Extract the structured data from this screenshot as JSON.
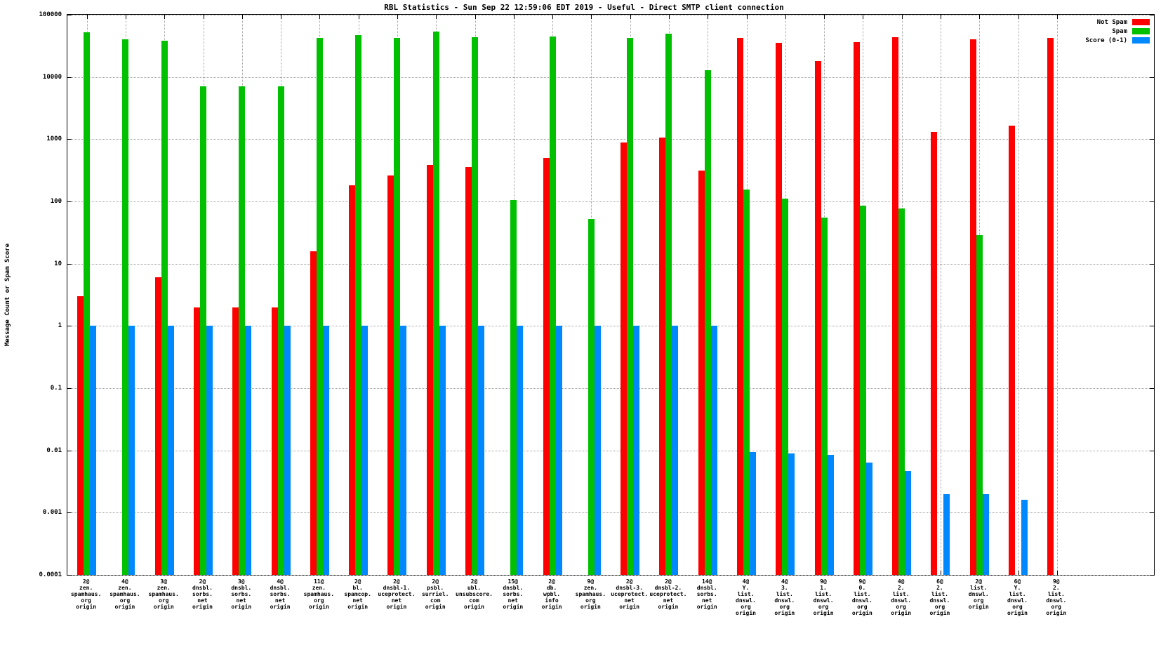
{
  "chart_data": {
    "type": "bar",
    "title": "RBL Statistics - Sun Sep 22 12:59:06 EDT 2019 - Useful - Direct SMTP client connection",
    "ylabel": "Message Count or Spam Score",
    "yscale": "log",
    "ylim": [
      0.0001,
      100000
    ],
    "ytick_labels": [
      "100000",
      "10000",
      "1000",
      "100",
      "10",
      "1",
      "0.1",
      "0.01",
      "0.001",
      "0.0001"
    ],
    "grid": true,
    "legend_position": "top-right-inside",
    "categories": [
      [
        "2@",
        "zen.",
        "spamhaus.",
        "org",
        "origin"
      ],
      [
        "4@",
        "zen.",
        "spamhaus.",
        "org",
        "origin"
      ],
      [
        "3@",
        "zen.",
        "spamhaus.",
        "org",
        "origin"
      ],
      [
        "2@",
        "dnsbl.",
        "sorbs.",
        "net",
        "origin"
      ],
      [
        "3@",
        "dnsbl.",
        "sorbs.",
        "net",
        "origin"
      ],
      [
        "4@",
        "dnsbl.",
        "sorbs.",
        "net",
        "origin"
      ],
      [
        "11@",
        "zen.",
        "spamhaus.",
        "org",
        "origin"
      ],
      [
        "2@",
        "bl.",
        "spamcop.",
        "net",
        "origin"
      ],
      [
        "2@",
        "dnsbl-1.",
        "uceprotect.",
        "net",
        "origin"
      ],
      [
        "2@",
        "psbl.",
        "surriel.",
        "com",
        "origin"
      ],
      [
        "2@",
        "ubl.",
        "unsubscore.",
        "com",
        "origin"
      ],
      [
        "15@",
        "dnsbl.",
        "sorbs.",
        "net",
        "origin"
      ],
      [
        "2@",
        "db.",
        "wpbl.",
        "info",
        "origin"
      ],
      [
        "9@",
        "zen.",
        "spamhaus.",
        "org",
        "origin"
      ],
      [
        "2@",
        "dnsbl-3.",
        "uceprotect.",
        "net",
        "origin"
      ],
      [
        "2@",
        "dnsbl-2.",
        "uceprotect.",
        "net",
        "origin"
      ],
      [
        "14@",
        "dnsbl.",
        "sorbs.",
        "net",
        "origin"
      ],
      [
        "4@",
        "Y.",
        "list.",
        "dnswl.",
        "org",
        "origin"
      ],
      [
        "4@",
        "3.",
        "list.",
        "dnswl.",
        "org",
        "origin"
      ],
      [
        "9@",
        "1.",
        "list.",
        "dnswl.",
        "org",
        "origin"
      ],
      [
        "9@",
        "0.",
        "list.",
        "dnswl.",
        "org",
        "origin"
      ],
      [
        "4@",
        "2.",
        "list.",
        "dnswl.",
        "org",
        "origin"
      ],
      [
        "6@",
        "2.",
        "list.",
        "dnswl.",
        "org",
        "origin"
      ],
      [
        "2@",
        "list.",
        "dnswl.",
        "org",
        "origin"
      ],
      [
        "6@",
        "Y.",
        "list.",
        "dnswl.",
        "org",
        "origin"
      ],
      [
        "9@",
        "2.",
        "list.",
        "dnswl.",
        "org",
        "origin"
      ]
    ],
    "series": [
      {
        "name": "Not Spam",
        "color": "#ff0000",
        "values": [
          3,
          null,
          6,
          2,
          2,
          2,
          16,
          180,
          260,
          390,
          360,
          null,
          500,
          null,
          880,
          1050,
          310,
          43000,
          35000,
          18000,
          36000,
          44000,
          1300,
          40000,
          1650,
          42000
        ]
      },
      {
        "name": "Spam",
        "color": "#00c000",
        "values": [
          52000,
          40000,
          38000,
          7000,
          7000,
          7000,
          42000,
          47000,
          42000,
          53000,
          44000,
          105,
          45000,
          52,
          42000,
          50000,
          13000,
          155,
          110,
          55,
          85,
          78,
          null,
          29,
          null,
          null
        ]
      },
      {
        "name": "Score (0-1)",
        "color": "#0088ff",
        "values": [
          1,
          1,
          1,
          1,
          1,
          1,
          1,
          1,
          1,
          1,
          1,
          1,
          1,
          1,
          1,
          1,
          1,
          0.0095,
          0.009,
          0.0085,
          0.0063,
          0.0047,
          0.002,
          0.002,
          0.0016,
          null
        ]
      }
    ]
  }
}
